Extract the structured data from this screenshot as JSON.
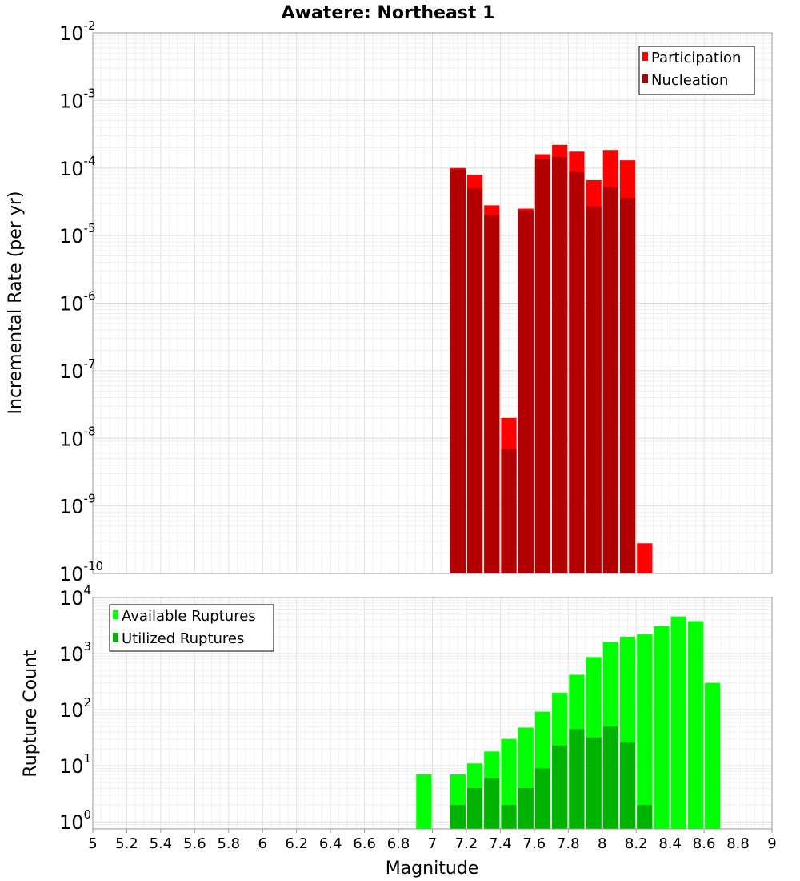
{
  "chart_data": [
    {
      "type": "bar",
      "title": "Awatere: Northeast 1",
      "xlabel": "",
      "ylabel": "Incremental Rate (per yr)",
      "yscale": "log",
      "ylim": [
        1e-10,
        0.01
      ],
      "xlim": [
        5,
        9
      ],
      "grid": true,
      "legend_position": "top-right",
      "bin_width": 0.1,
      "x": [
        7.15,
        7.25,
        7.35,
        7.45,
        7.55,
        7.65,
        7.75,
        7.85,
        7.95,
        8.05,
        8.15,
        8.25
      ],
      "series": [
        {
          "name": "Participation",
          "color": "#ff0000",
          "values": [
            0.0001,
            8e-05,
            2.8e-05,
            2e-08,
            2.5e-05,
            0.00016,
            0.00022,
            0.000175,
            6.6e-05,
            0.000185,
            0.00013,
            2.8e-10
          ]
        },
        {
          "name": "Nucleation",
          "color": "#b30000",
          "values": [
            9.5e-05,
            5e-05,
            2e-05,
            7e-09,
            2.3e-05,
            0.000138,
            0.000145,
            8.7e-05,
            2.7e-05,
            5.2e-05,
            3.6e-05,
            null
          ]
        }
      ]
    },
    {
      "type": "bar",
      "title": "",
      "xlabel": "Magnitude",
      "ylabel": "Rupture Count",
      "yscale": "log",
      "ylim": [
        0.75,
        10000
      ],
      "xlim": [
        5,
        9
      ],
      "grid": true,
      "legend_position": "top-left",
      "bin_width": 0.1,
      "x": [
        6.95,
        7.15,
        7.25,
        7.35,
        7.45,
        7.55,
        7.65,
        7.75,
        7.85,
        7.95,
        8.05,
        8.15,
        8.25,
        8.35,
        8.45,
        8.55,
        8.65
      ],
      "series": [
        {
          "name": "Available Ruptures",
          "color": "#00ff00",
          "values": [
            7,
            7,
            11,
            18,
            30,
            48,
            92,
            200,
            420,
            870,
            1600,
            2000,
            2200,
            3100,
            4600,
            3800,
            300
          ]
        },
        {
          "name": "Utilized Ruptures",
          "color": "#00b300",
          "values": [
            null,
            2,
            4,
            6,
            2,
            4,
            9,
            23,
            45,
            32,
            50,
            26,
            2,
            null,
            null,
            null,
            null
          ]
        }
      ],
      "xticks": [
        "5",
        "5.2",
        "5.4",
        "5.6",
        "5.8",
        "6",
        "6.2",
        "6.4",
        "6.6",
        "6.8",
        "7",
        "7.2",
        "7.4",
        "7.6",
        "7.8",
        "8",
        "8.2",
        "8.4",
        "8.6",
        "8.8",
        "9"
      ]
    }
  ],
  "top_yticks": [
    {
      "exp": "-10",
      "value": 1e-10
    },
    {
      "exp": "-9",
      "value": 1e-09
    },
    {
      "exp": "-8",
      "value": 1e-08
    },
    {
      "exp": "-7",
      "value": 1e-07
    },
    {
      "exp": "-6",
      "value": 1e-06
    },
    {
      "exp": "-5",
      "value": 1e-05
    },
    {
      "exp": "-4",
      "value": 0.0001
    },
    {
      "exp": "-3",
      "value": 0.001
    },
    {
      "exp": "-2",
      "value": 0.01
    }
  ],
  "bottom_yticks": [
    {
      "exp": "0",
      "value": 1
    },
    {
      "exp": "1",
      "value": 10
    },
    {
      "exp": "2",
      "value": 100
    },
    {
      "exp": "3",
      "value": 1000
    },
    {
      "exp": "4",
      "value": 10000
    }
  ],
  "tick_base": "10"
}
